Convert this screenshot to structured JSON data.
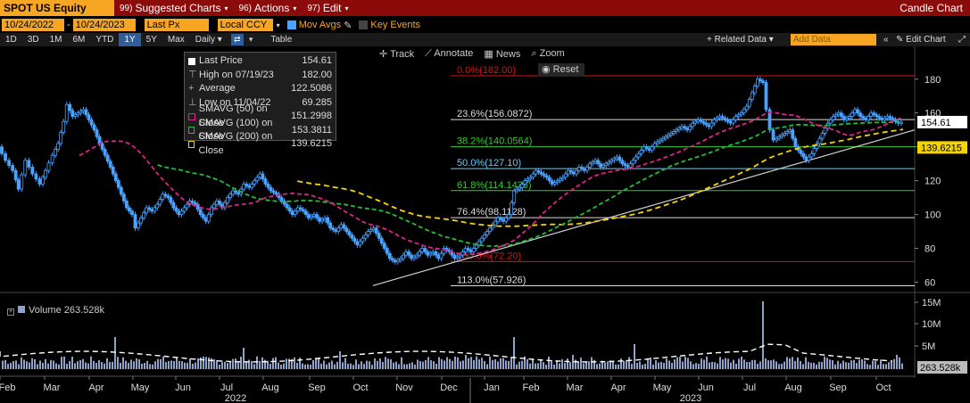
{
  "header": {
    "ticker": "SPOT US Equity",
    "menus": [
      {
        "num": "99)",
        "label": "Suggested Charts"
      },
      {
        "num": "96)",
        "label": "Actions"
      },
      {
        "num": "97)",
        "label": "Edit"
      }
    ],
    "chart_type": "Candle Chart"
  },
  "settings": {
    "start_date": "10/24/2022",
    "end_date": "10/24/2023",
    "price_field": "Last Px",
    "currency": "Local CCY",
    "mov_avgs_label": "Mov Avgs",
    "key_events_label": "Key Events"
  },
  "periods": {
    "items": [
      "1D",
      "3D",
      "1M",
      "6M",
      "YTD",
      "1Y",
      "5Y",
      "Max"
    ],
    "active": "1Y",
    "frequency": "Daily",
    "table_label": "Table",
    "related_data": "Related Data",
    "add_data_placeholder": "Add Data",
    "edit_chart": "Edit Chart"
  },
  "chart_tools": {
    "track": "Track",
    "annotate": "Annotate",
    "news": "News",
    "zoom": "Zoom",
    "reset": "Reset"
  },
  "legend": {
    "last_price_label": "Last Price",
    "last_price": "154.61",
    "high_label": "High on 07/19/23",
    "high": "182.00",
    "average_label": "Average",
    "average": "122.5086",
    "low_label": "Low on 11/04/22",
    "low": "69.285",
    "sma50_label": "SMAVG (50)  on Close",
    "sma50": "151.2998",
    "sma100_label": "SMAVG (100)  on Close",
    "sma100": "153.3811",
    "sma200_label": "SMAVG (200)  on Close",
    "sma200": "139.6215"
  },
  "colors": {
    "accent": "#f6a623",
    "topbar": "#8b0a0a",
    "sma50": "#e0218a",
    "sma100": "#1fbf3a",
    "sma200": "#f5d400",
    "candle": "#4aa3ff",
    "volume": "#8fa3c8"
  },
  "volume_label": "Volume 263.528k",
  "chart_data": {
    "type": "line",
    "x_axis": {
      "months": [
        "Feb",
        "Mar",
        "Apr",
        "May",
        "Jun",
        "Jul",
        "Aug",
        "Sep",
        "Oct",
        "Nov",
        "Dec",
        "Jan",
        "Feb",
        "Mar",
        "Apr",
        "May",
        "Jun",
        "Jul",
        "Aug",
        "Sep",
        "Oct"
      ],
      "years": [
        "2022",
        "2023"
      ]
    },
    "y_axis": {
      "ticks": [
        60,
        80,
        100,
        120,
        140,
        160,
        180
      ],
      "ylim": [
        55,
        192
      ]
    },
    "volume_axis": {
      "ticks": [
        "15M",
        "10M",
        "5M"
      ]
    },
    "price": [
      [
        0,
        140
      ],
      [
        8,
        132
      ],
      [
        16,
        126
      ],
      [
        22,
        115
      ],
      [
        30,
        132
      ],
      [
        38,
        124
      ],
      [
        46,
        118
      ],
      [
        52,
        126
      ],
      [
        60,
        135
      ],
      [
        66,
        142
      ],
      [
        72,
        155
      ],
      [
        76,
        165
      ],
      [
        82,
        158
      ],
      [
        88,
        160
      ],
      [
        94,
        162
      ],
      [
        100,
        156
      ],
      [
        106,
        150
      ],
      [
        112,
        142
      ],
      [
        118,
        135
      ],
      [
        124,
        128
      ],
      [
        130,
        120
      ],
      [
        136,
        112
      ],
      [
        142,
        104
      ],
      [
        148,
        100
      ],
      [
        152,
        92
      ],
      [
        158,
        98
      ],
      [
        164,
        104
      ],
      [
        170,
        102
      ],
      [
        176,
        106
      ],
      [
        182,
        112
      ],
      [
        188,
        110
      ],
      [
        194,
        104
      ],
      [
        200,
        100
      ],
      [
        206,
        104
      ],
      [
        212,
        108
      ],
      [
        218,
        106
      ],
      [
        224,
        100
      ],
      [
        230,
        96
      ],
      [
        236,
        104
      ],
      [
        242,
        108
      ],
      [
        248,
        104
      ],
      [
        254,
        110
      ],
      [
        260,
        114
      ],
      [
        266,
        112
      ],
      [
        272,
        118
      ],
      [
        278,
        116
      ],
      [
        284,
        120
      ],
      [
        290,
        124
      ],
      [
        296,
        118
      ],
      [
        302,
        114
      ],
      [
        308,
        112
      ],
      [
        314,
        108
      ],
      [
        320,
        104
      ],
      [
        326,
        100
      ],
      [
        332,
        104
      ],
      [
        338,
        102
      ],
      [
        344,
        98
      ],
      [
        350,
        100
      ],
      [
        356,
        96
      ],
      [
        362,
        98
      ],
      [
        368,
        92
      ],
      [
        374,
        90
      ],
      [
        380,
        94
      ],
      [
        386,
        90
      ],
      [
        392,
        86
      ],
      [
        398,
        82
      ],
      [
        404,
        86
      ],
      [
        410,
        90
      ],
      [
        416,
        92
      ],
      [
        422,
        86
      ],
      [
        428,
        80
      ],
      [
        434,
        74
      ],
      [
        440,
        72
      ],
      [
        446,
        74
      ],
      [
        452,
        78
      ],
      [
        458,
        74
      ],
      [
        464,
        76
      ],
      [
        470,
        80
      ],
      [
        476,
        76
      ],
      [
        482,
        78
      ],
      [
        488,
        74
      ],
      [
        494,
        80
      ],
      [
        500,
        78
      ],
      [
        506,
        74
      ],
      [
        512,
        76
      ],
      [
        518,
        80
      ],
      [
        524,
        78
      ],
      [
        530,
        82
      ],
      [
        536,
        86
      ],
      [
        542,
        90
      ],
      [
        548,
        94
      ],
      [
        554,
        98
      ],
      [
        560,
        96
      ],
      [
        566,
        100
      ],
      [
        572,
        114
      ],
      [
        578,
        116
      ],
      [
        584,
        120
      ],
      [
        590,
        122
      ],
      [
        596,
        126
      ],
      [
        602,
        124
      ],
      [
        608,
        122
      ],
      [
        614,
        118
      ],
      [
        620,
        120
      ],
      [
        626,
        122
      ],
      [
        632,
        126
      ],
      [
        638,
        124
      ],
      [
        644,
        128
      ],
      [
        650,
        126
      ],
      [
        656,
        130
      ],
      [
        662,
        132
      ],
      [
        668,
        128
      ],
      [
        674,
        130
      ],
      [
        680,
        132
      ],
      [
        686,
        134
      ],
      [
        692,
        130
      ],
      [
        698,
        128
      ],
      [
        704,
        132
      ],
      [
        710,
        136
      ],
      [
        716,
        140
      ],
      [
        722,
        138
      ],
      [
        728,
        142
      ],
      [
        734,
        144
      ],
      [
        740,
        146
      ],
      [
        746,
        148
      ],
      [
        752,
        150
      ],
      [
        758,
        152
      ],
      [
        764,
        150
      ],
      [
        770,
        154
      ],
      [
        776,
        156
      ],
      [
        782,
        154
      ],
      [
        788,
        152
      ],
      [
        794,
        156
      ],
      [
        800,
        158
      ],
      [
        806,
        156
      ],
      [
        812,
        154
      ],
      [
        818,
        158
      ],
      [
        824,
        160
      ],
      [
        830,
        164
      ],
      [
        836,
        172
      ],
      [
        842,
        180
      ],
      [
        848,
        178
      ],
      [
        852,
        162
      ],
      [
        856,
        150
      ],
      [
        860,
        144
      ],
      [
        866,
        146
      ],
      [
        872,
        148
      ],
      [
        878,
        150
      ],
      [
        884,
        140
      ],
      [
        890,
        136
      ],
      [
        896,
        132
      ],
      [
        902,
        136
      ],
      [
        908,
        142
      ],
      [
        914,
        148
      ],
      [
        920,
        154
      ],
      [
        926,
        158
      ],
      [
        932,
        160
      ],
      [
        938,
        156
      ],
      [
        944,
        158
      ],
      [
        950,
        162
      ],
      [
        956,
        158
      ],
      [
        962,
        156
      ],
      [
        968,
        160
      ],
      [
        974,
        158
      ],
      [
        980,
        156
      ],
      [
        986,
        158
      ],
      [
        992,
        156
      ],
      [
        998,
        154
      ],
      [
        1002,
        154.61
      ]
    ],
    "fib_levels": [
      {
        "label": "0.0%(182.00)",
        "value": 182.0,
        "color": "#d11"
      },
      {
        "label": "23.6%(156.0872)",
        "value": 156.0872,
        "color": "#ddd"
      },
      {
        "label": "38.2%(140.0564)",
        "value": 140.0564,
        "color": "#3c3"
      },
      {
        "label": "50.0%(127.10)",
        "value": 127.1,
        "color": "#6cf"
      },
      {
        "label": "61.8%(114.1436)",
        "value": 114.1436,
        "color": "#3c3"
      },
      {
        "label": "76.4%(98.1128)",
        "value": 98.1128,
        "color": "#ddd"
      },
      {
        "label": "100.0%(72.20)",
        "value": 72.2,
        "color": "#d11"
      },
      {
        "label": "113.0%(57.926)",
        "value": 57.926,
        "color": "#ddd"
      }
    ],
    "last_price_tag": "154.61",
    "sma200_tag": "139.6215"
  }
}
